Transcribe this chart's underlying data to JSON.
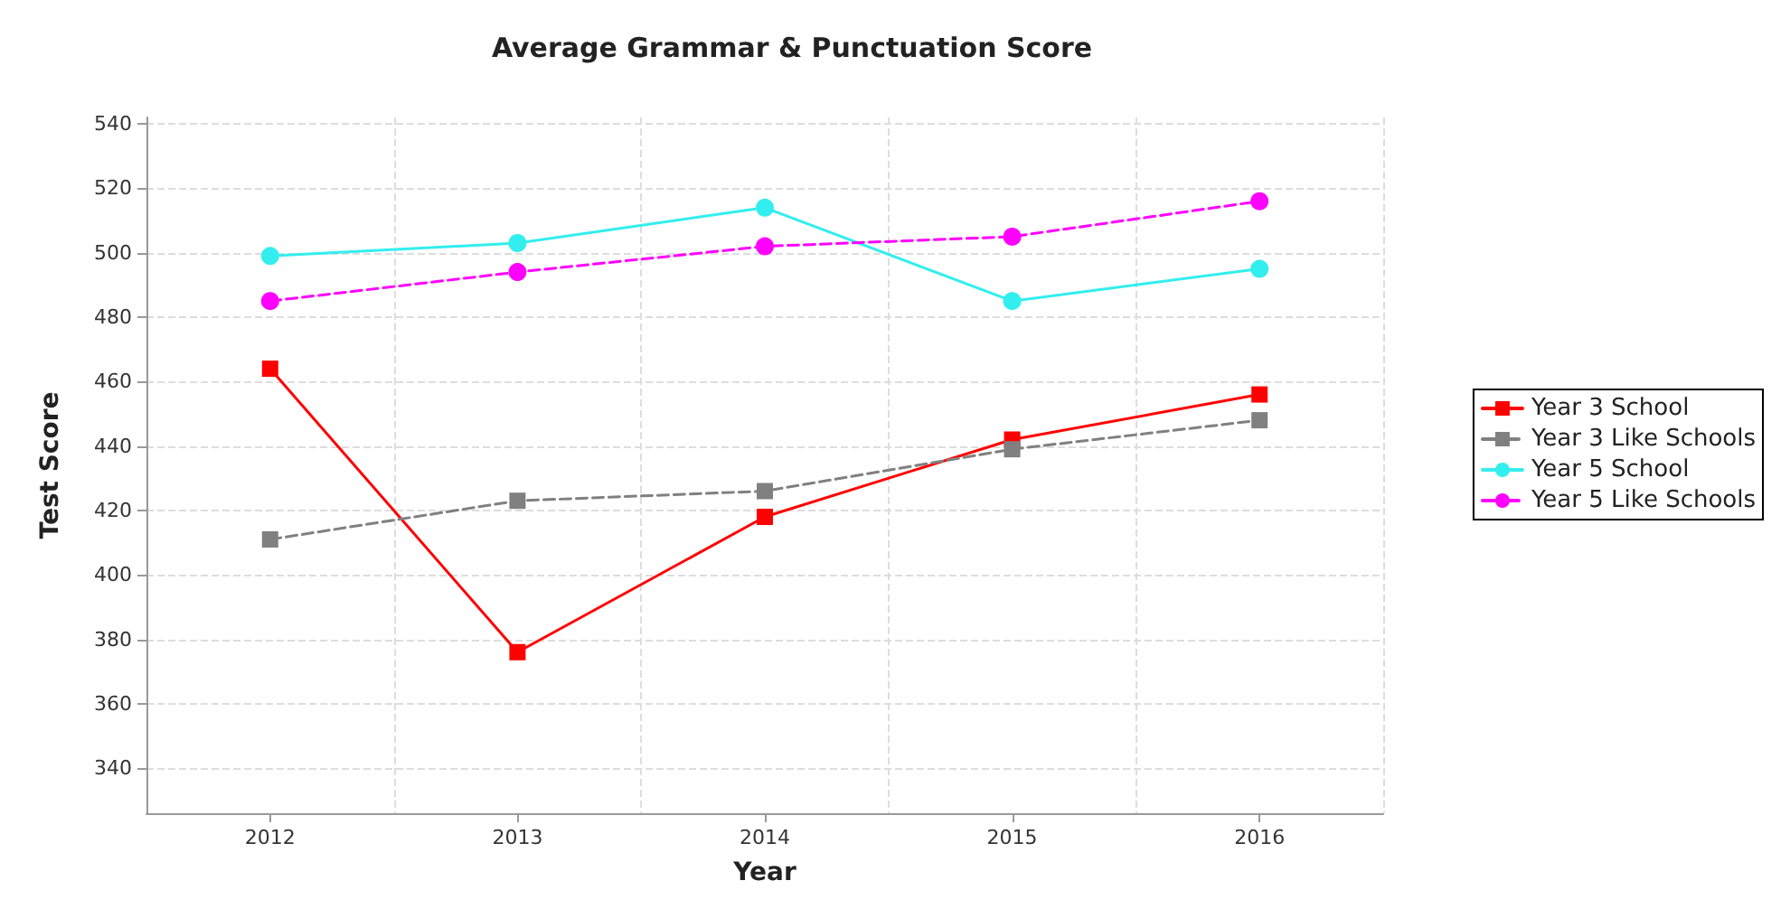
{
  "chart_data": {
    "type": "line",
    "title": "Average Grammar & Punctuation Score",
    "xlabel": "Year",
    "ylabel": "Test Score",
    "categories": [
      "2012",
      "2013",
      "2014",
      "2015",
      "2016"
    ],
    "series": [
      {
        "name": "Year 3 School",
        "color": "#ff0000",
        "marker": "square",
        "line_style": "solid",
        "values": [
          464,
          376,
          418,
          442,
          456
        ]
      },
      {
        "name": "Year 3 Like Schools",
        "color": "#808080",
        "marker": "square",
        "line_style": "dashed",
        "values": [
          411,
          423,
          426,
          439,
          448
        ]
      },
      {
        "name": "Year 5 School",
        "color": "#33eeee",
        "marker": "circle",
        "line_style": "solid",
        "values": [
          499,
          503,
          514,
          485,
          495
        ]
      },
      {
        "name": "Year 5 Like Schools",
        "color": "#ff00ff",
        "marker": "circle",
        "line_style": "dashed",
        "values": [
          485,
          494,
          502,
          505,
          516
        ]
      }
    ],
    "ylim": [
      326,
      542
    ],
    "yticks": [
      340,
      360,
      380,
      400,
      420,
      440,
      460,
      480,
      500,
      520,
      540
    ],
    "grid": true,
    "legend": "right"
  }
}
